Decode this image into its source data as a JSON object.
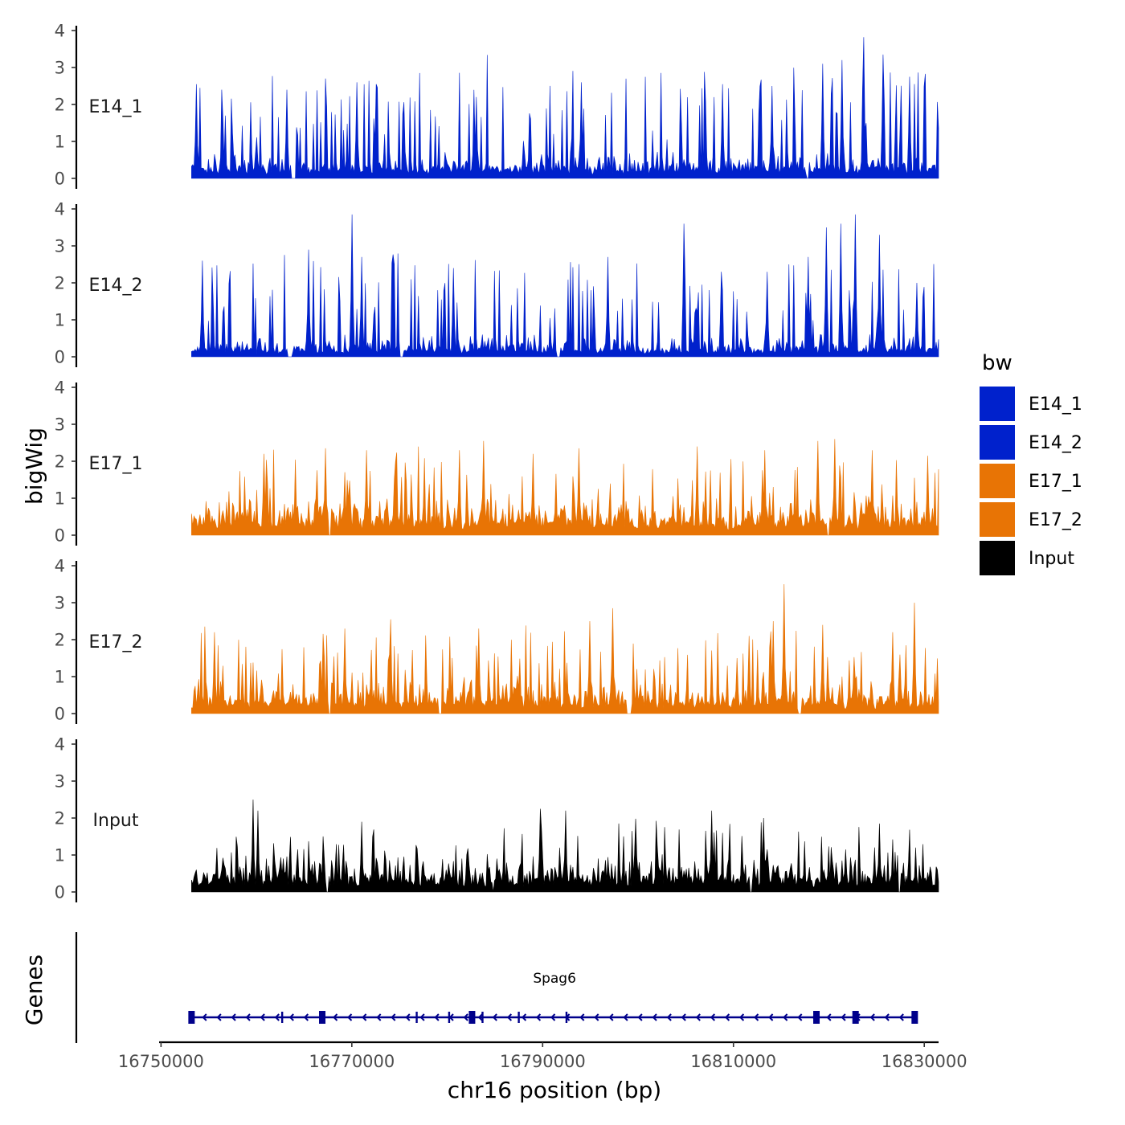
{
  "chart_data": {
    "type": "area",
    "ylabel": "bigWig",
    "xlabel": "chr16 position (bp)",
    "ylim": [
      0,
      4
    ],
    "yticks": [
      0,
      1,
      2,
      3,
      4
    ],
    "xlim": [
      16749800,
      16831500
    ],
    "xticks": [
      16750000,
      16770000,
      16790000,
      16810000,
      16830000
    ],
    "xtick_labels": [
      "16750000",
      "16770000",
      "16790000",
      "16810000",
      "16830000"
    ],
    "signal_range": [
      16753200,
      16831500
    ],
    "legend": {
      "title": "bw",
      "entries": [
        {
          "label": "E14_1",
          "color": "#0021cc"
        },
        {
          "label": "E14_2",
          "color": "#0021cc"
        },
        {
          "label": "E17_1",
          "color": "#e87405"
        },
        {
          "label": "E17_2",
          "color": "#e87405"
        },
        {
          "label": "Input",
          "color": "#000000"
        }
      ]
    },
    "tracks": [
      {
        "name": "E14_1",
        "color": "#0021cc",
        "seed": 11,
        "base": 0.55,
        "peak_prob": 0.16,
        "peak_max": 2.7,
        "gaps": [
          [
            16763600,
            16764100
          ],
          [
            16817600,
            16817900
          ]
        ],
        "peaks": [
          [
            16753700,
            2.55
          ],
          [
            16763200,
            2.4
          ],
          [
            16770500,
            2.6
          ],
          [
            16772500,
            2.55
          ],
          [
            16783000,
            2.2
          ],
          [
            16794000,
            2.6
          ],
          [
            16808800,
            2.55
          ],
          [
            16814000,
            2.5
          ],
          [
            16819300,
            3.1
          ],
          [
            16821400,
            3.2
          ],
          [
            16823700,
            3.82
          ],
          [
            16825700,
            3.35
          ],
          [
            16828500,
            2.75
          ]
        ]
      },
      {
        "name": "E14_2",
        "color": "#0021cc",
        "seed": 23,
        "base": 0.45,
        "peak_prob": 0.15,
        "peak_max": 2.4,
        "gaps": [
          [
            16763300,
            16763700
          ],
          [
            16775000,
            16775400
          ],
          [
            16791500,
            16791900
          ]
        ],
        "peaks": [
          [
            16754400,
            2.6
          ],
          [
            16765500,
            2.9
          ],
          [
            16770000,
            3.85
          ],
          [
            16771000,
            2.7
          ],
          [
            16780700,
            2.4
          ],
          [
            16796800,
            2.7
          ],
          [
            16804800,
            3.6
          ],
          [
            16808700,
            2.3
          ],
          [
            16813500,
            2.3
          ],
          [
            16817800,
            2.7
          ],
          [
            16819700,
            3.5
          ],
          [
            16821300,
            3.6
          ],
          [
            16822800,
            3.85
          ],
          [
            16825300,
            3.3
          ],
          [
            16829200,
            2.0
          ]
        ]
      },
      {
        "name": "E17_1",
        "color": "#e87405",
        "seed": 37,
        "base": 0.8,
        "peak_prob": 0.13,
        "peak_max": 1.7,
        "gaps": [
          [
            16767600,
            16767800
          ],
          [
            16819800,
            16820000
          ]
        ],
        "peaks": [
          [
            16760800,
            2.2
          ],
          [
            16767300,
            2.35
          ],
          [
            16771500,
            2.3
          ],
          [
            16781300,
            2.3
          ],
          [
            16783800,
            2.55
          ],
          [
            16789000,
            2.2
          ],
          [
            16793800,
            2.35
          ],
          [
            16806200,
            2.4
          ],
          [
            16813300,
            2.3
          ],
          [
            16818800,
            2.55
          ],
          [
            16820600,
            2.6
          ],
          [
            16824500,
            2.3
          ],
          [
            16830300,
            2.15
          ]
        ]
      },
      {
        "name": "E17_2",
        "color": "#e87405",
        "seed": 53,
        "base": 0.7,
        "peak_prob": 0.15,
        "peak_max": 1.8,
        "gaps": [
          [
            16767500,
            16767800
          ],
          [
            16779100,
            16779500
          ],
          [
            16798800,
            16799300
          ],
          [
            16816800,
            16817200
          ]
        ],
        "peaks": [
          [
            16755600,
            2.2
          ],
          [
            16769300,
            2.3
          ],
          [
            16774100,
            2.55
          ],
          [
            16783300,
            2.3
          ],
          [
            16795000,
            2.5
          ],
          [
            16797400,
            2.85
          ],
          [
            16811600,
            2.1
          ],
          [
            16814200,
            2.5
          ],
          [
            16815300,
            3.5
          ],
          [
            16819400,
            2.4
          ],
          [
            16826700,
            2.2
          ],
          [
            16829000,
            3.0
          ]
        ]
      },
      {
        "name": "Input",
        "color": "#000000",
        "seed": 71,
        "base": 0.75,
        "peak_prob": 0.14,
        "peak_max": 1.4,
        "gaps": [
          [
            16767300,
            16767500
          ],
          [
            16784700,
            16784900
          ],
          [
            16811700,
            16811900
          ],
          [
            16827300,
            16827500
          ]
        ],
        "peaks": [
          [
            16759600,
            2.5
          ],
          [
            16760100,
            2.2
          ],
          [
            16771000,
            1.9
          ],
          [
            16789700,
            2.25
          ],
          [
            16792400,
            2.2
          ],
          [
            16807700,
            2.2
          ],
          [
            16813200,
            2.0
          ],
          [
            16825300,
            1.85
          ]
        ]
      }
    ],
    "genes": {
      "axis_title": "Genes",
      "items": [
        {
          "name": "Spag6",
          "strand": "-",
          "start": 16753200,
          "end": 16829300,
          "exons": [
            16753200,
            16766900,
            16782600,
            16818700,
            16822800,
            16829000
          ],
          "small_exons": [
            16762700,
            16776800,
            16780200,
            16783700,
            16787500,
            16792500
          ]
        }
      ]
    }
  }
}
